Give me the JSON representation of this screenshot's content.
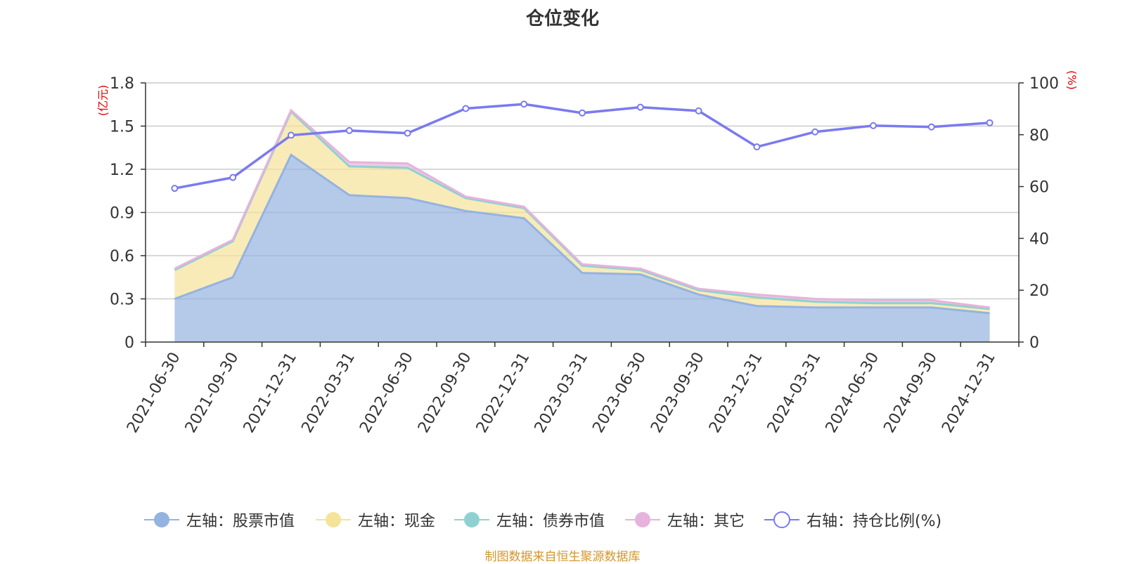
{
  "title": "仓位变化",
  "source": "制图数据来自恒生聚源数据库",
  "chart_data": {
    "type": "area",
    "categories": [
      "2021-06-30",
      "2021-09-30",
      "2021-12-31",
      "2022-03-31",
      "2022-06-30",
      "2022-09-30",
      "2022-12-31",
      "2023-03-31",
      "2023-06-30",
      "2023-09-30",
      "2023-12-31",
      "2024-03-31",
      "2024-06-30",
      "2024-09-30",
      "2024-12-31"
    ],
    "left_axis": {
      "unit": "(亿元)",
      "ylim": [
        0,
        1.8
      ],
      "ticks": [
        "0",
        "0.3",
        "0.6",
        "0.9",
        "1.2",
        "1.5",
        "1.8"
      ]
    },
    "right_axis": {
      "unit": "(%)",
      "ylim": [
        0,
        100
      ],
      "ticks": [
        "0",
        "20",
        "40",
        "60",
        "80",
        "100"
      ]
    },
    "series": [
      {
        "name": "左轴：股票市值",
        "axis": "left",
        "kind": "stacked-area",
        "color": "#95b3e0",
        "values": [
          0.3,
          0.45,
          1.3,
          1.02,
          1.0,
          0.91,
          0.86,
          0.48,
          0.47,
          0.33,
          0.25,
          0.24,
          0.24,
          0.24,
          0.2
        ]
      },
      {
        "name": "左轴：现金",
        "axis": "left",
        "kind": "stacked-area",
        "color": "#f5e39a",
        "values": [
          0.2,
          0.25,
          0.3,
          0.2,
          0.21,
          0.09,
          0.07,
          0.05,
          0.03,
          0.03,
          0.06,
          0.04,
          0.03,
          0.03,
          0.03
        ]
      },
      {
        "name": "左轴：债券市值",
        "axis": "left",
        "kind": "stacked-area",
        "color": "#8fd1d1",
        "values": [
          0,
          0,
          0,
          0,
          0,
          0,
          0,
          0,
          0,
          0,
          0,
          0,
          0,
          0,
          0
        ]
      },
      {
        "name": "左轴：其它",
        "axis": "left",
        "kind": "stacked-area",
        "color": "#e6b3dc",
        "values": [
          0.01,
          0.01,
          0.01,
          0.03,
          0.03,
          0.01,
          0.01,
          0.01,
          0.01,
          0.01,
          0.02,
          0.02,
          0.02,
          0.02,
          0.01
        ]
      },
      {
        "name": "右轴：持仓比例(%)",
        "axis": "right",
        "kind": "line",
        "color": "#7a7af0",
        "values": [
          59.3,
          63.5,
          79.8,
          81.6,
          80.6,
          90.1,
          91.8,
          88.4,
          90.6,
          89.2,
          75.3,
          81.1,
          83.5,
          83.0,
          84.6
        ]
      }
    ]
  }
}
